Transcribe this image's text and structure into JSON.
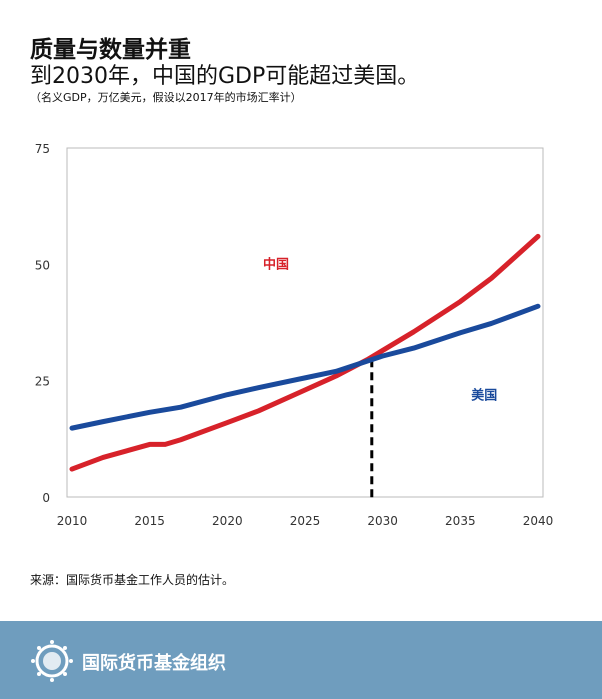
{
  "header": {
    "title": "质量与数量并重",
    "subtitle": "到2030年，中国的GDP可能超过美国。",
    "note": "（名义GDP，万亿美元，假设以2017年的市场汇率计）"
  },
  "chart_data": {
    "type": "line",
    "title": "",
    "xlabel": "",
    "ylabel": "",
    "xlim": [
      2010,
      2040
    ],
    "ylim": [
      0,
      75
    ],
    "x_ticks": [
      "2010",
      "2015",
      "2020",
      "2025",
      "2030",
      "2035",
      "2040"
    ],
    "y_ticks": [
      "0",
      "25",
      "50",
      "75"
    ],
    "grid": false,
    "series": [
      {
        "name": "中国",
        "color": "#d7222a",
        "x": [
          2010,
          2012,
          2015,
          2016,
          2017,
          2020,
          2022,
          2025,
          2027,
          2029,
          2030,
          2032,
          2035,
          2037,
          2040
        ],
        "values": [
          6,
          8.5,
          11.3,
          11.3,
          12.3,
          16,
          18.5,
          23,
          26,
          29.5,
          31.5,
          35.5,
          42,
          47,
          56
        ]
      },
      {
        "name": "美国",
        "color": "#1a4a9c",
        "x": [
          2010,
          2012,
          2015,
          2017,
          2020,
          2022,
          2025,
          2027,
          2030,
          2032,
          2035,
          2037,
          2040
        ],
        "values": [
          14.8,
          16.2,
          18.2,
          19.3,
          22,
          23.5,
          25.6,
          27,
          30.3,
          32,
          35.3,
          37.3,
          41
        ]
      }
    ],
    "annotations": [
      {
        "type": "dashed-vline",
        "x": 2029.3,
        "y_top": 29.6
      }
    ]
  },
  "source": "来源：国际货币基金工作人员的估计。",
  "footer": {
    "org": "国际货币基金组织"
  }
}
